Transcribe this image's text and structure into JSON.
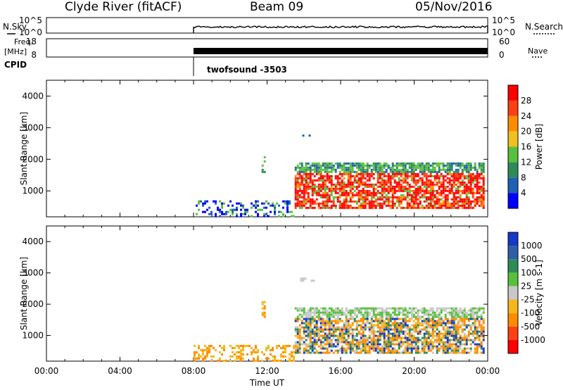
{
  "header": {
    "title": "Clyde River (fitACF)",
    "beam": "Beam 09",
    "date": "05/Nov/2016"
  },
  "strips": {
    "nsky_label": "N.Sky",
    "nsearch_label": "N.Search",
    "freq_label": "Freq.",
    "freq_unit": "[MHz]",
    "nave_label": "Nave",
    "cpid_label": "CPID",
    "cpid_value": "twofsound -3503",
    "noise_ticks": [
      "10^5",
      "10^0"
    ],
    "noise_ticks_right": [
      "10^5",
      "10^0"
    ],
    "freq_ticks": [
      "18",
      "8"
    ],
    "nave_ticks": [
      "60",
      "0"
    ]
  },
  "colors": {
    "power_scale": [
      "#0000ff",
      "#1f5fb5",
      "#2e8b57",
      "#58c03c",
      "#f0c020",
      "#ff8c00",
      "#ff4010",
      "#ff0000"
    ],
    "velocity_scale": [
      "#1438c8",
      "#2c5fa8",
      "#2e8b57",
      "#58c03c",
      "#c8c8c8",
      "#f5b81a",
      "#ff8c00",
      "#ff4010",
      "#ff0000"
    ]
  },
  "chart_data": [
    {
      "type": "heatmap",
      "title": "",
      "ylabel": "Slant Range [km]",
      "xlabel": "",
      "x_ticks": [
        "00:00",
        "04:00",
        "08:00",
        "12:00",
        "16:00",
        "20:00",
        "00:00"
      ],
      "y_ticks": [
        1000,
        2000,
        3000,
        4000
      ],
      "xlim_hours": [
        0,
        24
      ],
      "ylim_km": [
        180,
        4500
      ],
      "colorbar_label": "Power [dB]",
      "colorbar_ticks": [
        4,
        8,
        12,
        16,
        20,
        24,
        28
      ],
      "colorbar_range": [
        0,
        30
      ],
      "data_start_hour": 8,
      "regions": [
        {
          "name": "main echo band",
          "hours": [
            13.5,
            23.8
          ],
          "range_km": [
            450,
            1900
          ],
          "power_db": 28
        },
        {
          "name": "near-range scatter",
          "hours": [
            8.0,
            13.5
          ],
          "range_km": [
            180,
            700
          ],
          "power_db": 4
        },
        {
          "name": "isolated patch",
          "hours": [
            11.7,
            11.9
          ],
          "range_km": [
            1600,
            2100
          ],
          "power_db": 14
        },
        {
          "name": "far-range patch",
          "hours": [
            13.8,
            14.6
          ],
          "range_km": [
            2750,
            2850
          ],
          "power_db": 6
        }
      ]
    },
    {
      "type": "heatmap",
      "title": "",
      "ylabel": "Slant Range [km]",
      "xlabel": "Time UT",
      "x_ticks": [
        "00:00",
        "04:00",
        "08:00",
        "12:00",
        "16:00",
        "20:00",
        "00:00"
      ],
      "y_ticks": [
        1000,
        2000,
        3000,
        4000
      ],
      "xlim_hours": [
        0,
        24
      ],
      "ylim_km": [
        180,
        4500
      ],
      "colorbar_label": "Velocity [m s-1]",
      "colorbar_tick_labels": [
        "1000",
        "500",
        "100",
        "25",
        "-25",
        "-100",
        "-500",
        "-1000"
      ],
      "data_start_hour": 8,
      "regions": [
        {
          "name": "main echo band",
          "hours": [
            13.5,
            23.8
          ],
          "range_km": [
            450,
            1900
          ],
          "velocity_ms": -150
        },
        {
          "name": "near-range scatter",
          "hours": [
            8.0,
            13.5
          ],
          "range_km": [
            180,
            700
          ],
          "velocity_ms": -100
        },
        {
          "name": "isolated patch",
          "hours": [
            11.7,
            11.9
          ],
          "range_km": [
            1600,
            2100
          ],
          "velocity_ms": -80
        },
        {
          "name": "far-range patch",
          "hours": [
            13.8,
            14.6
          ],
          "range_km": [
            2750,
            2850
          ],
          "velocity_ms": 0
        }
      ]
    }
  ]
}
